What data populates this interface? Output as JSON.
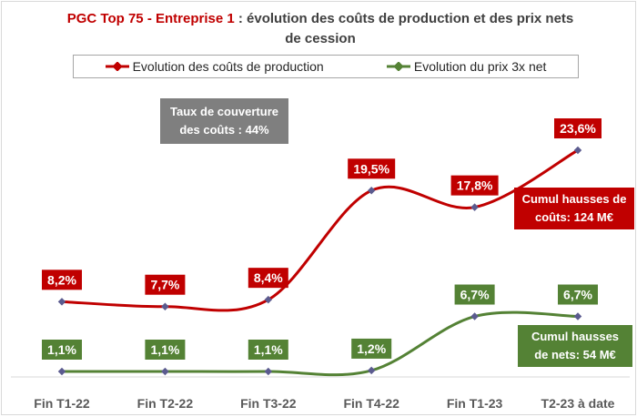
{
  "title": {
    "highlight": "PGC Top 75 - Entreprise 1",
    "separator": " : ",
    "rest_line1": "évolution des coûts de production et des prix nets",
    "rest_line2": "de cession"
  },
  "legend": {
    "items": [
      {
        "label": "Evolution des coûts de production",
        "color": "#c00000"
      },
      {
        "label": "Evolution du prix 3x net",
        "color": "#548235"
      }
    ]
  },
  "annotations": {
    "coverage": {
      "line1": "Taux de couverture",
      "line2": "des coûts : 44%",
      "color": "#7f7f7f"
    },
    "cost_cumul": {
      "line1": "Cumul hausses de",
      "line2": "coûts: 124 M€",
      "color": "#c00000"
    },
    "net_cumul": {
      "line1": "Cumul hausses",
      "line2": "de nets: 54 M€",
      "color": "#548235"
    }
  },
  "chart_data": {
    "type": "line",
    "categories": [
      "Fin T1-22",
      "Fin T2-22",
      "Fin T3-22",
      "Fin T4-22",
      "Fin T1-23",
      "T2-23 à date"
    ],
    "series": [
      {
        "name": "Evolution des coûts de production",
        "values": [
          8.2,
          7.7,
          8.4,
          19.5,
          17.8,
          23.6
        ],
        "labels": [
          "8,2%",
          "7,7%",
          "8,4%",
          "19,5%",
          "17,8%",
          "23,6%"
        ],
        "color": "#c00000"
      },
      {
        "name": "Evolution du prix 3x net",
        "values": [
          1.1,
          1.1,
          1.1,
          1.2,
          6.7,
          6.7
        ],
        "labels": [
          "1,1%",
          "1,1%",
          "1,1%",
          "1,2%",
          "6,7%",
          "6,7%"
        ],
        "color": "#548235"
      }
    ],
    "smooth": true,
    "marker_color": "#5b5b8f",
    "grid": false
  }
}
